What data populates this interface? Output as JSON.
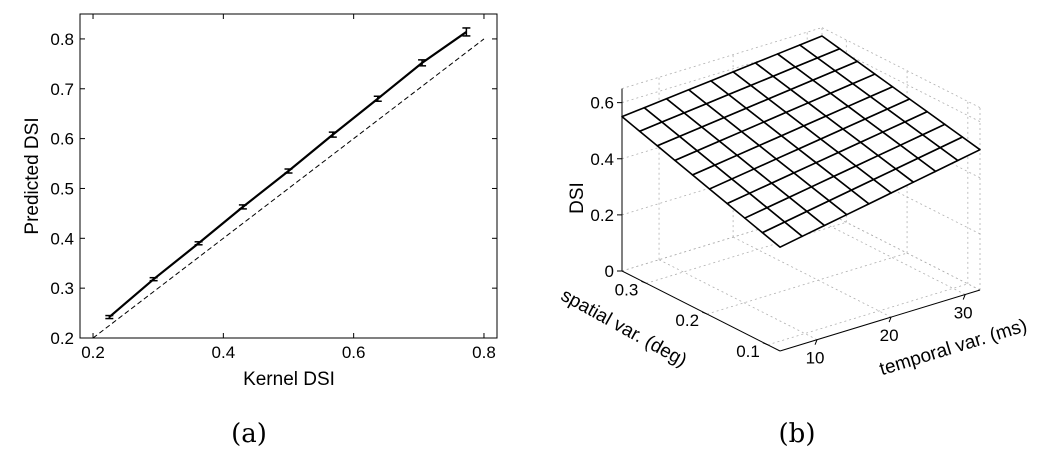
{
  "panels": {
    "a": {
      "label": "(a)"
    },
    "b": {
      "label": "(b)"
    }
  },
  "chart_data": [
    {
      "type": "line",
      "title": "",
      "xlabel": "Kernel DSI",
      "ylabel": "Predicted DSI",
      "xlim": [
        0.18,
        0.82
      ],
      "ylim": [
        0.2,
        0.85
      ],
      "xticks": [
        "0.2",
        "0.4",
        "0.6",
        "0.8"
      ],
      "yticks": [
        "0.2",
        "0.3",
        "0.4",
        "0.5",
        "0.6",
        "0.7",
        "0.8"
      ],
      "grid": false,
      "series": [
        {
          "x": [
            0.225,
            0.293,
            0.362,
            0.43,
            0.5,
            0.568,
            0.637,
            0.705,
            0.773
          ],
          "y": [
            0.242,
            0.318,
            0.39,
            0.463,
            0.535,
            0.608,
            0.68,
            0.752,
            0.814
          ],
          "err": [
            0.003,
            0.003,
            0.003,
            0.004,
            0.004,
            0.005,
            0.005,
            0.006,
            0.008
          ],
          "style": "solid-with-errorbars"
        },
        {
          "x": [
            0.2,
            0.8
          ],
          "y": [
            0.2,
            0.8
          ],
          "style": "dashed-identity"
        }
      ]
    },
    {
      "type": "surface",
      "title": "",
      "xlabel": "temporal var. (ms)",
      "ylabel": "spatial var. (deg)",
      "zlabel": "DSI",
      "xlim": [
        5,
        32
      ],
      "ylim": [
        0.08,
        0.34
      ],
      "zlim": [
        0,
        0.65
      ],
      "xticks": [
        "10",
        "20",
        "30"
      ],
      "yticks": [
        "0.1",
        "0.2",
        "0.3"
      ],
      "zticks": [
        "0",
        "0.2",
        "0.4",
        "0.6"
      ],
      "grid": true,
      "temporal": [
        5,
        8,
        11,
        14,
        17,
        20,
        23,
        26,
        29,
        32
      ],
      "spatial": [
        0.08,
        0.109,
        0.138,
        0.167,
        0.196,
        0.224,
        0.253,
        0.282,
        0.311,
        0.34
      ],
      "dsi_corners": {
        "low_t_low_s": 0.37,
        "low_t_high_s": 0.55,
        "high_t_low_s": 0.5,
        "high_t_high_s": 0.62
      }
    }
  ]
}
